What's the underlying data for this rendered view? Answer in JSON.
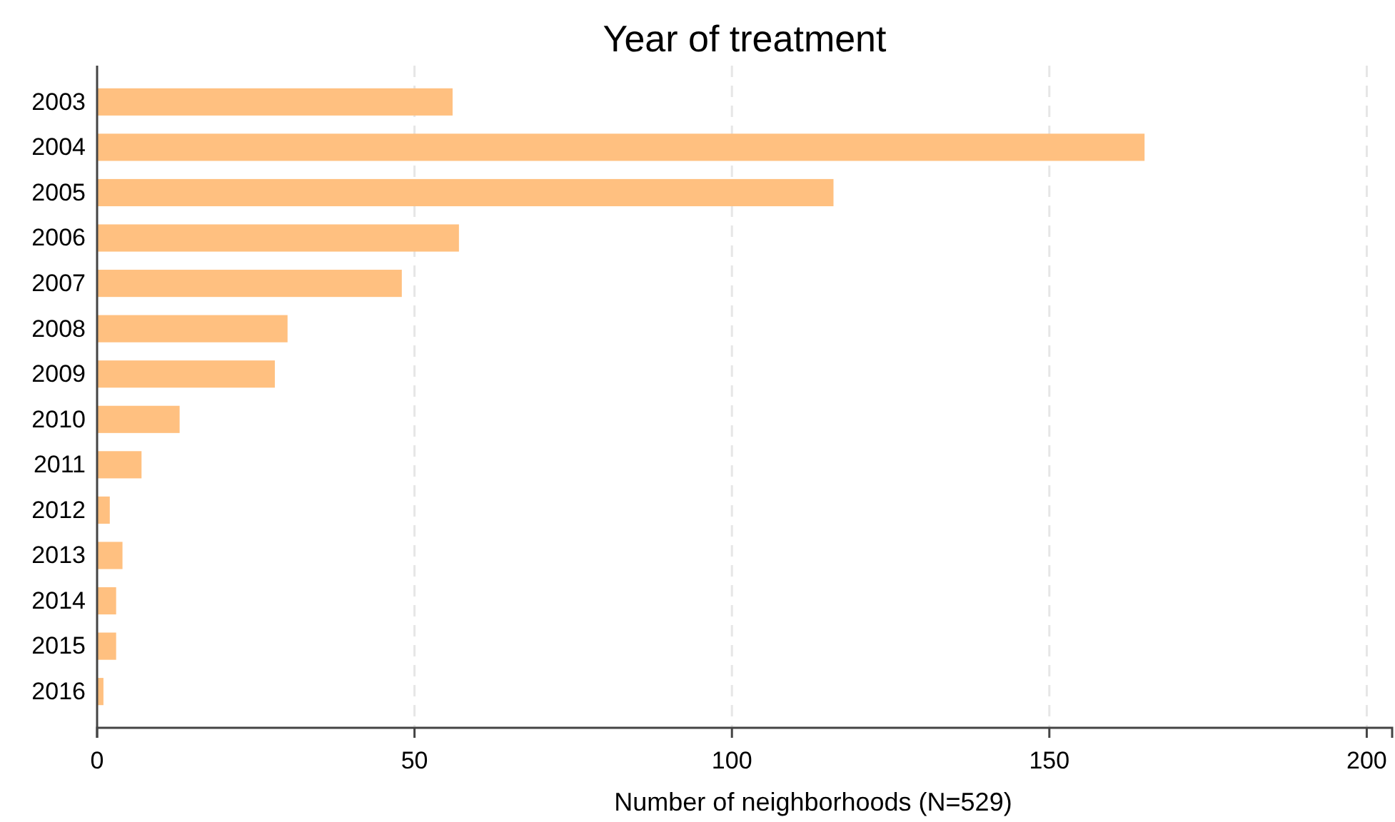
{
  "chart_data": {
    "type": "bar",
    "orientation": "horizontal",
    "title": "Year of treatment",
    "xlabel": "Number of neighborhoods (N=529)",
    "categories": [
      "2003",
      "2004",
      "2005",
      "2006",
      "2007",
      "2008",
      "2009",
      "2010",
      "2011",
      "2012",
      "2013",
      "2014",
      "2015",
      "2016"
    ],
    "values": [
      56,
      165,
      116,
      57,
      48,
      30,
      28,
      13,
      7,
      2,
      4,
      3,
      3,
      1
    ],
    "color": "#ffc080",
    "xlim": [
      0,
      204
    ],
    "xticks": [
      0,
      50,
      100,
      150,
      200
    ],
    "grid": "x"
  }
}
